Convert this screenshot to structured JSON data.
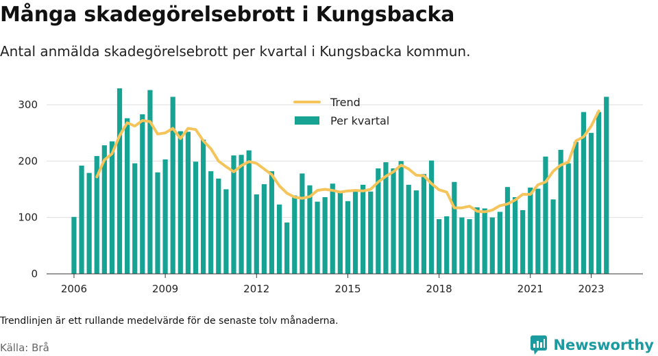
{
  "header": {
    "title": "Många skadegörelsebrott i Kungsbacka",
    "subtitle": "Antal anmälda skadegörelsebrott per kvartal i Kungsbacka kommun."
  },
  "footer": {
    "note": "Trendlinjen är ett rullande medelvärde för de senaste tolv månaderna.",
    "source": "Källa: Brå",
    "brand": "Newsworthy",
    "brand_icon": "bar-chart-speech-bubble-icon"
  },
  "colors": {
    "bar": "#16a394",
    "trend": "#f5c45a",
    "brand": "#1b9aa0",
    "grid": "#dddddd"
  },
  "chart_data": {
    "type": "bar",
    "x_start": "2006 Q1",
    "x_tick_labels": [
      "2006",
      "2009",
      "2012",
      "2015",
      "2018",
      "2021",
      "2023"
    ],
    "x_tick_positions": [
      2006,
      2009,
      2012,
      2015,
      2018,
      2021,
      2023
    ],
    "xlim": [
      2005.1,
      2024.7
    ],
    "ylim": [
      0,
      340
    ],
    "y_ticks": [
      0,
      100,
      200,
      300
    ],
    "grid": true,
    "legend_position": "top-center",
    "series": [
      {
        "name": "Per kvartal",
        "type": "bar",
        "values": [
          101,
          192,
          179,
          209,
          228,
          235,
          329,
          276,
          196,
          283,
          326,
          180,
          203,
          314,
          253,
          252,
          199,
          238,
          182,
          169,
          150,
          210,
          211,
          219,
          141,
          159,
          182,
          123,
          91,
          139,
          178,
          157,
          128,
          136,
          160,
          146,
          129,
          147,
          158,
          146,
          187,
          198,
          187,
          200,
          158,
          148,
          177,
          201,
          97,
          102,
          163,
          100,
          97,
          118,
          116,
          100,
          110,
          154,
          136,
          113,
          153,
          151,
          208,
          132,
          220,
          196,
          234,
          287,
          250,
          287,
          314
        ],
        "start": "2006 Q1"
      },
      {
        "name": "Trend",
        "type": "line",
        "values": [
          172,
          202,
          213,
          245,
          268,
          262,
          272,
          270,
          248,
          250,
          258,
          240,
          258,
          256,
          236,
          222,
          200,
          190,
          181,
          192,
          199,
          196,
          186,
          176,
          156,
          143,
          136,
          134,
          137,
          148,
          150,
          148,
          145,
          147,
          148,
          147,
          150,
          163,
          173,
          181,
          193,
          186,
          175,
          174,
          160,
          149,
          145,
          117,
          117,
          120,
          111,
          110,
          113,
          121,
          124,
          131,
          141,
          141,
          158,
          163,
          182,
          193,
          198,
          236,
          243,
          262,
          289
        ],
        "start": "2006 Q4"
      }
    ]
  }
}
